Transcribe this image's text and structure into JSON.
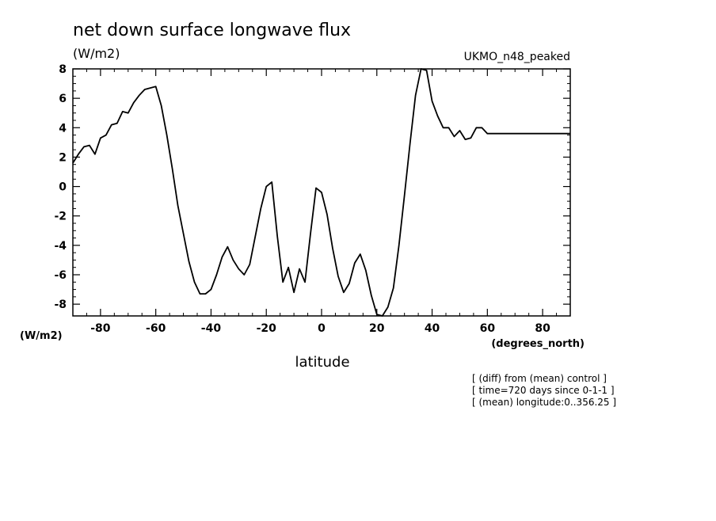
{
  "chart_data": {
    "type": "line",
    "title": "net down surface longwave flux",
    "unit_top": "(W/m2)",
    "dataset_label": "UKMO_n48_peaked",
    "ylabel_unit": "(W/m2)",
    "xlabel": "latitude",
    "xunit": "(degrees_north)",
    "xlim": [
      -90,
      90
    ],
    "ylim": [
      -8.8,
      8
    ],
    "xticks_major": [
      -80,
      -60,
      -40,
      -20,
      0,
      20,
      40,
      60,
      80
    ],
    "xtick_labels": [
      "-80",
      "-60",
      "-40",
      "-20",
      "0",
      "20",
      "40",
      "60",
      "80"
    ],
    "yticks_major": [
      -8,
      -6,
      -4,
      -2,
      0,
      2,
      4,
      6,
      8
    ],
    "ytick_labels": [
      "-8",
      "-6",
      "-4",
      "-2",
      "0",
      "2",
      "4",
      "6",
      "8"
    ],
    "grid": false,
    "series": [
      {
        "x": [
          -90,
          -88,
          -86,
          -84,
          -82,
          -80,
          -78,
          -76,
          -74,
          -72,
          -70,
          -68,
          -66,
          -64,
          -62,
          -60,
          -58,
          -56,
          -54,
          -52,
          -50,
          -48,
          -46,
          -44,
          -42,
          -40,
          -38,
          -36,
          -34,
          -32,
          -30,
          -28,
          -26,
          -24,
          -22,
          -20,
          -18,
          -16,
          -14,
          -12,
          -10,
          -8,
          -6,
          -4,
          -2,
          0,
          2,
          4,
          6,
          8,
          10,
          12,
          14,
          16,
          18,
          20,
          22,
          24,
          26,
          28,
          30,
          32,
          34,
          36,
          38,
          40,
          42,
          44,
          46,
          48,
          50,
          52,
          54,
          56,
          58,
          60,
          62,
          64,
          66,
          68,
          70,
          72,
          74,
          76,
          78,
          80,
          82,
          84,
          86,
          88,
          90
        ],
        "values": [
          1.6,
          2.2,
          2.7,
          2.8,
          2.2,
          3.3,
          3.5,
          4.2,
          4.3,
          5.1,
          5.0,
          5.7,
          6.2,
          6.6,
          6.7,
          6.8,
          5.5,
          3.5,
          1.2,
          -1.3,
          -3.2,
          -5.1,
          -6.5,
          -7.3,
          -7.3,
          -7.0,
          -6.0,
          -4.8,
          -4.1,
          -5.0,
          -5.6,
          -6.0,
          -5.3,
          -3.4,
          -1.5,
          0.0,
          0.3,
          -3.4,
          -6.5,
          -5.5,
          -7.2,
          -5.6,
          -6.5,
          -3.2,
          -0.1,
          -0.4,
          -1.9,
          -4.2,
          -6.1,
          -7.2,
          -6.6,
          -5.2,
          -4.6,
          -5.7,
          -7.4,
          -8.7,
          -8.8,
          -8.2,
          -6.9,
          -4.0,
          -0.6,
          2.9,
          6.2,
          8.0,
          7.9,
          5.8,
          4.8,
          4.0,
          4.0,
          3.4,
          3.8,
          3.2,
          3.3,
          4.0,
          4.0,
          3.6,
          3.6,
          3.6,
          3.6,
          3.6,
          3.6,
          3.6,
          3.6,
          3.6,
          3.6,
          3.6,
          3.6,
          3.6,
          3.6,
          3.6,
          3.6
        ]
      }
    ],
    "notes": [
      "[ (diff) from (mean) control ]",
      "[ time=720 days since 0-1-1 ]",
      "[ (mean) longitude:0..356.25 ]"
    ]
  }
}
